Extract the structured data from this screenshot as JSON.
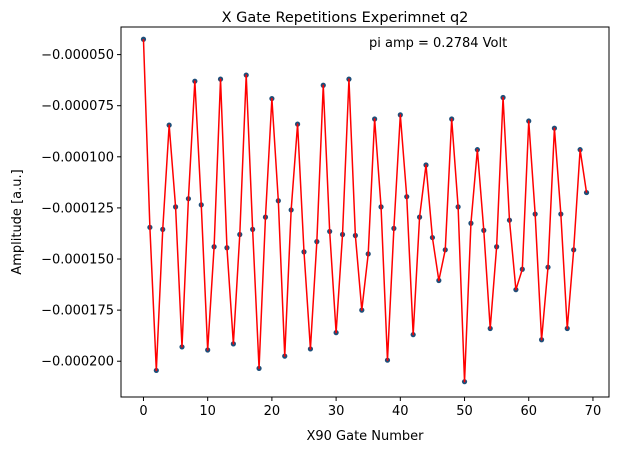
{
  "chart_data": {
    "type": "line",
    "title": "X Gate Repetitions Experimnet q2",
    "xlabel": "X90 Gate Number",
    "ylabel": "Amplitude [a.u.]",
    "annotation": "pi amp = 0.2784 Volt",
    "xlim": [
      -3.5,
      72.5
    ],
    "ylim": [
      -0.0002175,
      -3.65e-05
    ],
    "xticks": [
      0,
      10,
      20,
      30,
      40,
      50,
      60,
      70
    ],
    "yticks": [
      -0.0002,
      -0.000175,
      -0.00015,
      -0.000125,
      -0.0001,
      -7.5e-05,
      -5e-05
    ],
    "xtick_labels": [
      "0",
      "10",
      "20",
      "30",
      "40",
      "50",
      "60",
      "70"
    ],
    "ytick_labels": [
      "−0.000200",
      "−0.000175",
      "−0.000150",
      "−0.000125",
      "−0.000100",
      "−0.000075",
      "−0.000050"
    ],
    "grid": false,
    "legend": "none",
    "series": [
      {
        "style": "points",
        "color": "#1f4e79",
        "x": [
          0,
          1,
          2,
          3,
          4,
          5,
          6,
          7,
          8,
          9,
          10,
          11,
          12,
          13,
          14,
          15,
          16,
          17,
          18,
          19,
          20,
          21,
          22,
          23,
          24,
          25,
          26,
          27,
          28,
          29,
          30,
          31,
          32,
          33,
          34,
          35,
          36,
          37,
          38,
          39,
          40,
          41,
          42,
          43,
          44,
          45,
          46,
          47,
          48,
          49,
          50,
          51,
          52,
          53,
          54,
          55,
          56,
          57,
          58,
          59,
          60,
          61,
          62,
          63,
          64,
          65,
          66,
          67,
          68,
          69
        ],
        "y": [
          -4.25e-05,
          -0.0001345,
          -0.0002045,
          -0.0001355,
          -8.45e-05,
          -0.0001245,
          -0.000193,
          -0.0001205,
          -6.3e-05,
          -0.0001235,
          -0.0001945,
          -0.000144,
          -6.2e-05,
          -0.0001445,
          -0.0001915,
          -0.000138,
          -6e-05,
          -0.0001355,
          -0.0002035,
          -0.0001295,
          -7.15e-05,
          -0.0001215,
          -0.0001975,
          -0.000126,
          -8.4e-05,
          -0.0001465,
          -0.000194,
          -0.0001415,
          -6.5e-05,
          -0.0001365,
          -0.000186,
          -0.000138,
          -6.2e-05,
          -0.0001385,
          -0.000175,
          -0.0001475,
          -8.15e-05,
          -0.0001245,
          -0.0001995,
          -0.000135,
          -7.95e-05,
          -0.0001195,
          -0.000187,
          -0.0001295,
          -0.000104,
          -0.0001395,
          -0.0001605,
          -0.0001455,
          -8.15e-05,
          -0.0001245,
          -0.00021,
          -0.0001325,
          -9.65e-05,
          -0.000136,
          -0.000184,
          -0.000144,
          -7.1e-05,
          -0.000131,
          -0.000165,
          -0.000155,
          -8.25e-05,
          -0.000128,
          -0.0001895,
          -0.000154,
          -8.6e-05,
          -0.000128,
          -0.000184,
          -0.0001455,
          -9.65e-05,
          -0.0001175
        ]
      },
      {
        "style": "line",
        "color": "#ff0000",
        "x": [
          0,
          1,
          2,
          3,
          4,
          5,
          6,
          7,
          8,
          9,
          10,
          11,
          12,
          13,
          14,
          15,
          16,
          17,
          18,
          19,
          20,
          21,
          22,
          23,
          24,
          25,
          26,
          27,
          28,
          29,
          30,
          31,
          32,
          33,
          34,
          35,
          36,
          37,
          38,
          39,
          40,
          41,
          42,
          43,
          44,
          45,
          46,
          47,
          48,
          49,
          50,
          51,
          52,
          53,
          54,
          55,
          56,
          57,
          58,
          59,
          60,
          61,
          62,
          63,
          64,
          65,
          66,
          67,
          68,
          69
        ],
        "y": [
          -4.25e-05,
          -0.0001345,
          -0.0002045,
          -0.0001355,
          -8.45e-05,
          -0.0001245,
          -0.000193,
          -0.0001205,
          -6.3e-05,
          -0.0001235,
          -0.0001945,
          -0.000144,
          -6.2e-05,
          -0.0001445,
          -0.0001915,
          -0.000138,
          -6e-05,
          -0.0001355,
          -0.0002035,
          -0.0001295,
          -7.15e-05,
          -0.0001215,
          -0.0001975,
          -0.000126,
          -8.4e-05,
          -0.0001465,
          -0.000194,
          -0.0001415,
          -6.5e-05,
          -0.0001365,
          -0.000186,
          -0.000138,
          -6.2e-05,
          -0.0001385,
          -0.000175,
          -0.0001475,
          -8.15e-05,
          -0.0001245,
          -0.0001995,
          -0.000135,
          -7.95e-05,
          -0.0001195,
          -0.000187,
          -0.0001295,
          -0.000104,
          -0.0001395,
          -0.0001605,
          -0.0001455,
          -8.15e-05,
          -0.0001245,
          -0.00021,
          -0.0001325,
          -9.65e-05,
          -0.000136,
          -0.000184,
          -0.000144,
          -7.1e-05,
          -0.000131,
          -0.000165,
          -0.000155,
          -8.25e-05,
          -0.000128,
          -0.0001895,
          -0.000154,
          -8.6e-05,
          -0.000128,
          -0.000184,
          -0.0001455,
          -9.65e-05,
          -0.0001175
        ]
      }
    ]
  }
}
